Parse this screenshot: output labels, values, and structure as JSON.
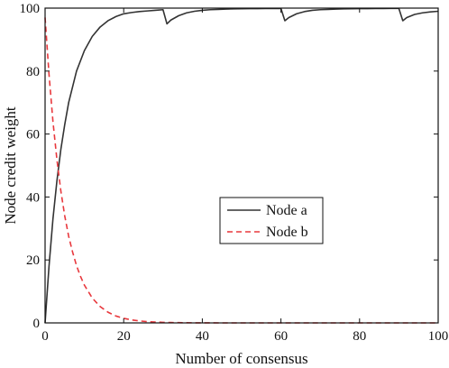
{
  "chart_data": {
    "type": "line",
    "title": "",
    "xlabel": "Number of consensus",
    "ylabel": "Node credit weight",
    "xlim": [
      0,
      100
    ],
    "ylim": [
      0,
      100
    ],
    "xticks": [
      0,
      20,
      40,
      60,
      80,
      100
    ],
    "yticks": [
      0,
      20,
      40,
      60,
      80,
      100
    ],
    "grid": false,
    "legend": "center-right",
    "series": [
      {
        "name": "Node a",
        "color": "#333333",
        "style": "solid",
        "x": [
          0,
          1,
          2,
          3,
          4,
          5,
          6,
          8,
          10,
          12,
          14,
          16,
          18,
          20,
          22,
          24,
          26,
          28,
          30,
          31,
          32,
          34,
          36,
          38,
          40,
          42,
          44,
          46,
          48,
          50,
          52,
          54,
          56,
          58,
          60,
          61,
          62,
          64,
          66,
          68,
          70,
          72,
          74,
          76,
          78,
          80,
          82,
          84,
          86,
          88,
          90,
          91,
          92,
          94,
          96,
          98,
          100
        ],
        "y": [
          0,
          18,
          33,
          45,
          55,
          63,
          70,
          80,
          86.5,
          91,
          94,
          96,
          97.3,
          98.2,
          98.6,
          98.9,
          99.1,
          99.3,
          99.5,
          95,
          96.2,
          97.6,
          98.5,
          99,
          99.3,
          99.5,
          99.6,
          99.7,
          99.75,
          99.8,
          99.82,
          99.85,
          99.87,
          99.88,
          99.9,
          96,
          97,
          98.2,
          98.9,
          99.3,
          99.5,
          99.6,
          99.7,
          99.75,
          99.8,
          99.82,
          99.85,
          99.87,
          99.88,
          99.9,
          99.9,
          96,
          97,
          98,
          98.5,
          98.8,
          99
        ]
      },
      {
        "name": "Node b",
        "color": "#e8383d",
        "style": "dashed",
        "x": [
          0,
          1,
          2,
          3,
          4,
          5,
          6,
          7,
          8,
          9,
          10,
          12,
          14,
          16,
          18,
          20,
          22,
          24,
          26,
          28,
          30,
          32,
          34,
          36,
          38,
          40,
          45,
          50,
          60,
          70,
          80,
          90,
          100
        ],
        "y": [
          97,
          79,
          64,
          52,
          42,
          34,
          27.5,
          22.5,
          18.2,
          14.8,
          12,
          7.9,
          5.2,
          3.4,
          2.2,
          1.45,
          0.95,
          0.62,
          0.41,
          0.27,
          0.18,
          0.12,
          0.08,
          0.05,
          0.03,
          0.02,
          0,
          0,
          0,
          0,
          0,
          0,
          0
        ]
      }
    ]
  }
}
